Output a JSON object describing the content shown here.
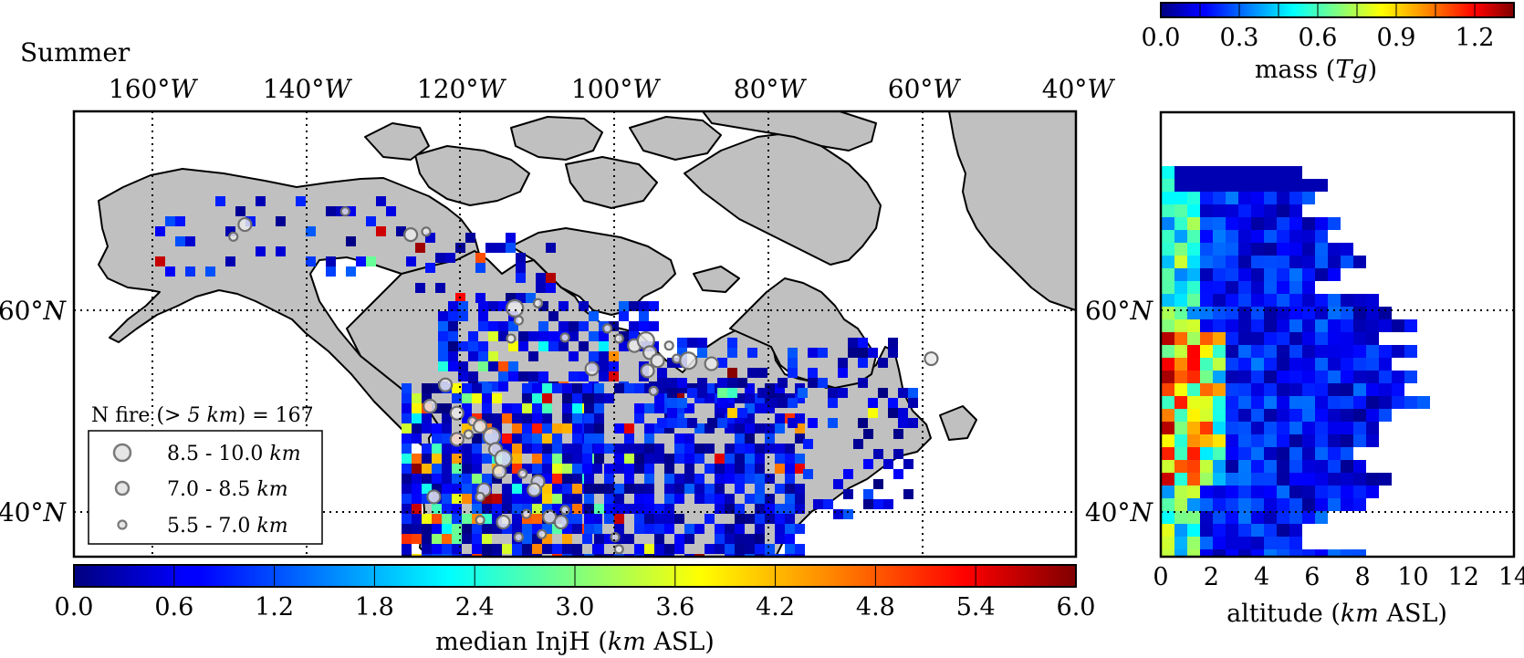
{
  "panel_title": "Summer",
  "colors": {
    "land": "#c0c0c0",
    "coast": "#000000",
    "background": "#ffffff"
  },
  "chart_data": [
    {
      "type": "heatmap",
      "name": "map",
      "title": "Summer",
      "lon_ticks": [
        "160°W",
        "140°W",
        "120°W",
        "100°W",
        "80°W",
        "60°W",
        "40°W"
      ],
      "lat_ticks": [
        "60°N",
        "40°N"
      ],
      "lon_range": [
        -170,
        -40
      ],
      "lat_range": [
        35,
        78
      ],
      "grid": true,
      "colorbar": {
        "label": "median InjH (km ASL)",
        "label_parts": [
          "median InjH (",
          "km",
          " ASL)"
        ],
        "ticks": [
          "0.0",
          "0.6",
          "1.2",
          "1.8",
          "2.4",
          "3.0",
          "3.6",
          "4.2",
          "4.8",
          "5.4",
          "6.0"
        ],
        "range": [
          0.0,
          6.0
        ],
        "colormap": "jet",
        "placement": "bottom"
      },
      "legend": {
        "title": "N fire (> 5 km) = 167",
        "title_parts": [
          "N fire (",
          "> 5 km",
          ") = 167"
        ],
        "placement": "lower-left",
        "entries": [
          {
            "label": "8.5 - 10.0 km",
            "text": "8.5 - 10.0 ",
            "unit": "km"
          },
          {
            "label": "7.0 - 8.5 km",
            "text": "7.0 - 8.5 ",
            "unit": "km"
          },
          {
            "label": "5.5 - 7.0 km",
            "text": "5.5 - 7.0 ",
            "unit": "km"
          }
        ]
      },
      "fire_markers": [
        {
          "lon": -148.0,
          "lat": 68.5,
          "size": "mid"
        },
        {
          "lon": -149.5,
          "lat": 67.3,
          "size": "small"
        },
        {
          "lon": -135.0,
          "lat": 69.8,
          "size": "small"
        },
        {
          "lon": -126.5,
          "lat": 67.5,
          "size": "mid"
        },
        {
          "lon": -124.5,
          "lat": 67.8,
          "size": "small"
        },
        {
          "lon": -113.0,
          "lat": 60.2,
          "size": "large"
        },
        {
          "lon": -112.5,
          "lat": 59.0,
          "size": "small"
        },
        {
          "lon": -110.0,
          "lat": 60.7,
          "size": "small"
        },
        {
          "lon": -113.5,
          "lat": 57.2,
          "size": "small"
        },
        {
          "lon": -106.5,
          "lat": 57.3,
          "size": "small"
        },
        {
          "lon": -101.0,
          "lat": 58.2,
          "size": "small"
        },
        {
          "lon": -99.5,
          "lat": 57.2,
          "size": "small"
        },
        {
          "lon": -97.5,
          "lat": 56.5,
          "size": "mid"
        },
        {
          "lon": -96.0,
          "lat": 57.0,
          "size": "large"
        },
        {
          "lon": -95.5,
          "lat": 55.8,
          "size": "mid"
        },
        {
          "lon": -94.5,
          "lat": 55.0,
          "size": "mid"
        },
        {
          "lon": -93.0,
          "lat": 56.5,
          "size": "small"
        },
        {
          "lon": -92.0,
          "lat": 55.2,
          "size": "small"
        },
        {
          "lon": -90.5,
          "lat": 55.0,
          "size": "large"
        },
        {
          "lon": -95.8,
          "lat": 54.0,
          "size": "mid"
        },
        {
          "lon": -95.0,
          "lat": 52.0,
          "size": "small"
        },
        {
          "lon": -87.5,
          "lat": 54.7,
          "size": "mid"
        },
        {
          "lon": -103.0,
          "lat": 54.2,
          "size": "mid"
        },
        {
          "lon": -59.0,
          "lat": 55.2,
          "size": "mid"
        },
        {
          "lon": -122.0,
          "lat": 52.6,
          "size": "mid"
        },
        {
          "lon": -124.0,
          "lat": 50.5,
          "size": "mid"
        },
        {
          "lon": -120.5,
          "lat": 49.8,
          "size": "mid"
        },
        {
          "lon": -120.5,
          "lat": 47.2,
          "size": "mid"
        },
        {
          "lon": -118.5,
          "lat": 49.0,
          "size": "small"
        },
        {
          "lon": -119.0,
          "lat": 47.7,
          "size": "small"
        },
        {
          "lon": -117.5,
          "lat": 48.5,
          "size": "mid"
        },
        {
          "lon": -116.0,
          "lat": 47.5,
          "size": "large"
        },
        {
          "lon": -115.5,
          "lat": 46.2,
          "size": "mid"
        },
        {
          "lon": -114.5,
          "lat": 45.3,
          "size": "large"
        },
        {
          "lon": -115.0,
          "lat": 44.0,
          "size": "mid"
        },
        {
          "lon": -112.0,
          "lat": 43.8,
          "size": "small"
        },
        {
          "lon": -110.0,
          "lat": 43.0,
          "size": "mid"
        },
        {
          "lon": -110.5,
          "lat": 42.2,
          "size": "mid"
        },
        {
          "lon": -117.0,
          "lat": 42.2,
          "size": "mid"
        },
        {
          "lon": -117.5,
          "lat": 41.5,
          "size": "small"
        },
        {
          "lon": -123.5,
          "lat": 41.5,
          "size": "mid"
        },
        {
          "lon": -117.5,
          "lat": 39.2,
          "size": "small"
        },
        {
          "lon": -111.5,
          "lat": 39.8,
          "size": "small"
        },
        {
          "lon": -114.5,
          "lat": 39.0,
          "size": "mid"
        },
        {
          "lon": -108.5,
          "lat": 39.5,
          "size": "mid"
        },
        {
          "lon": -107.0,
          "lat": 39.0,
          "size": "mid"
        },
        {
          "lon": -106.5,
          "lat": 40.2,
          "size": "small"
        },
        {
          "lon": -112.5,
          "lat": 37.5,
          "size": "small"
        },
        {
          "lon": -100.0,
          "lat": 37.5,
          "size": "small"
        },
        {
          "lon": -99.5,
          "lat": 36.3,
          "size": "small"
        },
        {
          "lon": -109.5,
          "lat": 37.8,
          "size": "small"
        }
      ]
    },
    {
      "type": "heatmap",
      "name": "profile",
      "xlabel": "altitude (km ASL)",
      "xlabel_parts": [
        "altitude (",
        "km",
        " ASL)"
      ],
      "x_ticks": [
        "0",
        "2",
        "4",
        "6",
        "8",
        "10",
        "12",
        "14"
      ],
      "xlim": [
        0,
        14
      ],
      "ylim": [
        35,
        78
      ],
      "y_ticks": [
        "60°N",
        "40°N"
      ],
      "colorbar": {
        "label": "mass (Tg)",
        "label_parts": [
          "mass (",
          "Tg",
          ")"
        ],
        "ticks": [
          "0.0",
          "0.3",
          "0.6",
          "0.9",
          "1.2"
        ],
        "range": [
          0.0,
          1.35
        ],
        "colormap": "jet",
        "placement": "top"
      }
    }
  ]
}
